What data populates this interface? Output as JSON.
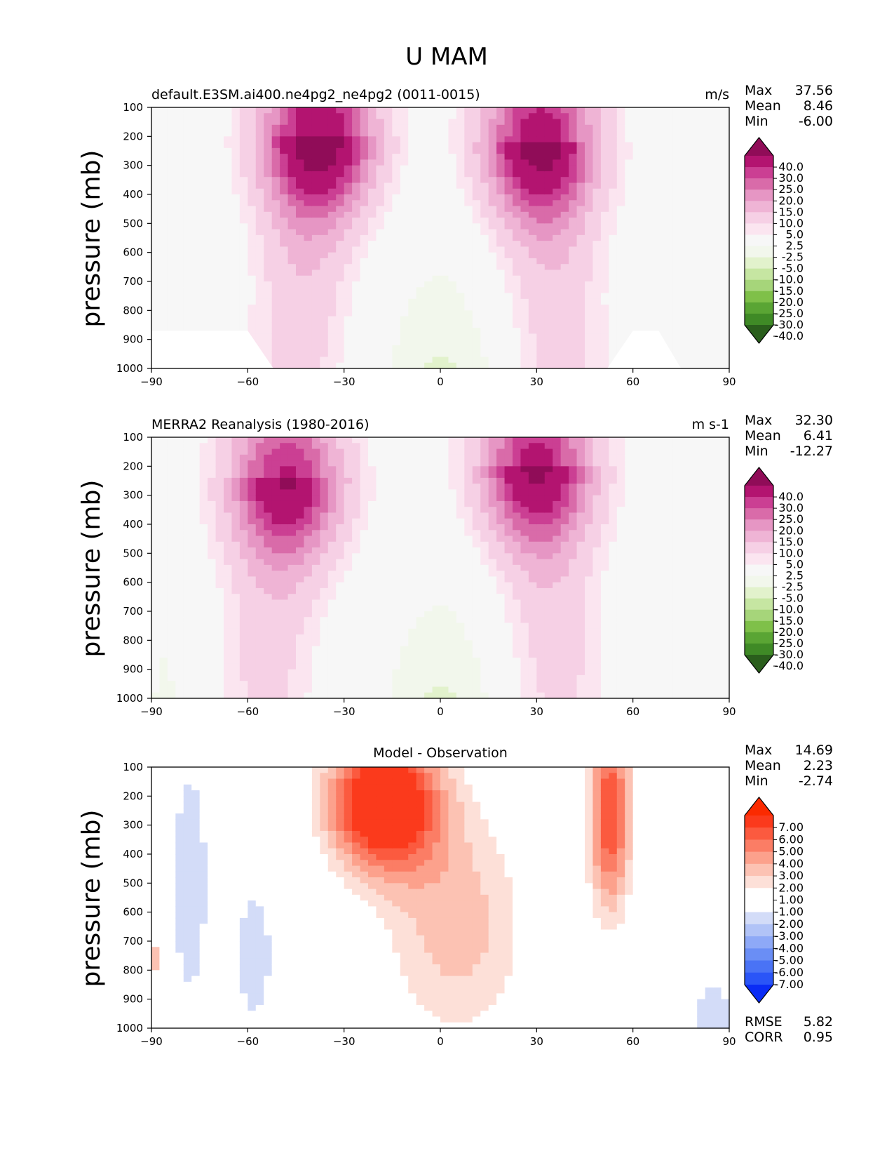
{
  "figure": {
    "title": "U MAM"
  },
  "colors": {
    "wind_levels": [
      "#2a5e1c",
      "#3f8a26",
      "#5aa534",
      "#7fc049",
      "#a6d57a",
      "#c6e6a2",
      "#e2f2cc",
      "#f2f7ec",
      "#f7f7f7",
      "#fbe5f0",
      "#f6d0e5",
      "#efb4d5",
      "#e696c4",
      "#d96ba9",
      "#cb3f93",
      "#b31470",
      "#900c58"
    ],
    "diff_levels": [
      "#0a2cf5",
      "#2a55f7",
      "#4a73f5",
      "#6a8ef5",
      "#8ea9f7",
      "#b1c3f7",
      "#d3dcf8",
      "#ffffff",
      "#ffffff",
      "#fde0d8",
      "#fcc2b3",
      "#fca18c",
      "#fb7d65",
      "#fb5a3f",
      "#fb3a1c",
      "#fb2a00"
    ]
  },
  "chart_data": [
    {
      "type": "contour",
      "title_left": "default.E3SM.ai400.ne4pg2_ne4pg2 (0011-0015)",
      "units": "m/s",
      "ylabel": "pressure (mb)",
      "xlim": [
        -90,
        90
      ],
      "ylim": [
        1000,
        100
      ],
      "x_ticks": [
        "−90",
        "−60",
        "−30",
        "0",
        "30",
        "60",
        "90"
      ],
      "y_ticks": [
        "100",
        "200",
        "300",
        "400",
        "500",
        "600",
        "700",
        "800",
        "900",
        "1000"
      ],
      "stats": {
        "max": "37.56",
        "mean": "8.46",
        "min": "-6.00"
      },
      "jets": [
        {
          "lat": -38,
          "p": 190,
          "peak": 37.56
        },
        {
          "lat": 31,
          "p": 210,
          "peak": 35
        }
      ],
      "colorbar_levels": [
        "40.0",
        "30.0",
        "25.0",
        "20.0",
        "15.0",
        "10.0",
        "5.0",
        "2.5",
        "-2.5",
        "-5.0",
        "-10.0",
        "-15.0",
        "-20.0",
        "-25.0",
        "-30.0",
        "-40.0"
      ]
    },
    {
      "type": "contour",
      "title_left": "MERRA2 Reanalysis (1980-2016)",
      "units": "m s-1",
      "ylabel": "pressure (mb)",
      "xlim": [
        -90,
        90
      ],
      "ylim": [
        1000,
        100
      ],
      "x_ticks": [
        "−90",
        "−60",
        "−30",
        "0",
        "30",
        "60",
        "90"
      ],
      "y_ticks": [
        "100",
        "200",
        "300",
        "400",
        "500",
        "600",
        "700",
        "800",
        "900",
        "1000"
      ],
      "stats": {
        "max": "32.30",
        "mean": "6.41",
        "min": "-12.27"
      },
      "jets": [
        {
          "lat": -48,
          "p": 240,
          "peak": 31
        },
        {
          "lat": 30,
          "p": 190,
          "peak": 32.3
        }
      ],
      "colorbar_levels": [
        "40.0",
        "30.0",
        "25.0",
        "20.0",
        "15.0",
        "10.0",
        "5.0",
        "2.5",
        "-2.5",
        "-5.0",
        "-10.0",
        "-15.0",
        "-20.0",
        "-25.0",
        "-30.0",
        "-40.0"
      ]
    },
    {
      "type": "contour",
      "title_center": "Model - Observation",
      "ylabel": "pressure (mb)",
      "xlim": [
        -90,
        90
      ],
      "ylim": [
        1000,
        100
      ],
      "x_ticks": [
        "−90",
        "−60",
        "−30",
        "0",
        "30",
        "60",
        "90"
      ],
      "y_ticks": [
        "100",
        "200",
        "300",
        "400",
        "500",
        "600",
        "700",
        "800",
        "900",
        "1000"
      ],
      "stats": {
        "max": "14.69",
        "mean": "2.23",
        "min": "-2.74"
      },
      "metrics": {
        "rmse": "5.82",
        "corr": "0.95"
      },
      "colorbar_levels": [
        "7.00",
        "6.00",
        "5.00",
        "4.00",
        "3.00",
        "2.00",
        "1.00",
        "-1.00",
        "-2.00",
        "-3.00",
        "-4.00",
        "-5.00",
        "-6.00",
        "-7.00"
      ]
    }
  ],
  "labels": {
    "max": "Max",
    "mean": "Mean",
    "min": "Min",
    "rmse": "RMSE",
    "corr": "CORR"
  }
}
